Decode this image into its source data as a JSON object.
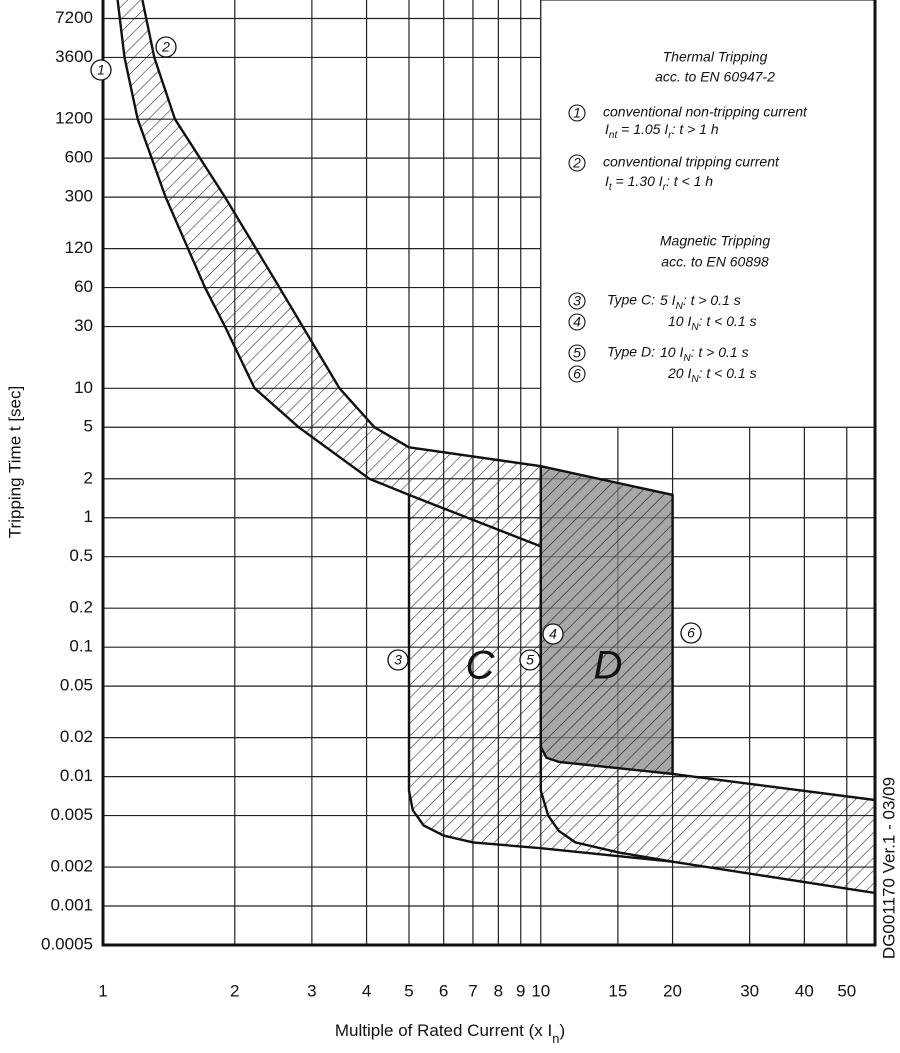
{
  "chart_data": {
    "type": "line",
    "y_label": "Tripping Time t [sec]",
    "x_label": [
      "Multiple of Rated Current (x I",
      "n",
      ")"
    ],
    "log_x": true,
    "log_y": true,
    "grid": true,
    "xlim": [
      1,
      58
    ],
    "ylim": [
      0.0005,
      10000
    ],
    "xticks": [
      1,
      2,
      3,
      4,
      5,
      6,
      7,
      8,
      9,
      10,
      15,
      20,
      30,
      40,
      50
    ],
    "yticks": [
      7200,
      3600,
      1200,
      600,
      300,
      120,
      60,
      30,
      10,
      5,
      2,
      1,
      0.5,
      0.2,
      0.1,
      0.05,
      0.02,
      0.01,
      0.005,
      0.002,
      0.001,
      0.0005
    ],
    "series": [
      {
        "color": "#111",
        "x": [
          1.08,
          1.12,
          1.2,
          1.39,
          1.71,
          1.9,
          2.22,
          2.8,
          4.06,
          5,
          10
        ],
        "values": [
          10000,
          3600,
          1200,
          300,
          60,
          30,
          10,
          5,
          2,
          1.5,
          0.6
        ]
      },
      {
        "color": "#111",
        "x": [
          1.23,
          1.31,
          1.46,
          1.9,
          2.53,
          3.47,
          4.17,
          5,
          10,
          20,
          20
        ],
        "values": [
          10000,
          3600,
          1200,
          300,
          60,
          10,
          5,
          3.5,
          2.5,
          1.5,
          0.0105
        ]
      },
      {
        "color": "#111",
        "x": [
          5,
          5,
          5.1,
          5.4,
          6,
          7,
          10,
          20,
          58
        ],
        "values": [
          1.5,
          0.0078,
          0.0055,
          0.0042,
          0.0035,
          0.0031,
          0.0028,
          0.0022,
          0.00126
        ]
      },
      {
        "color": "#111",
        "x": [
          10,
          10,
          10.3,
          11,
          20,
          58
        ],
        "values": [
          2.5,
          0.017,
          0.014,
          0.013,
          0.0105,
          0.0066
        ]
      },
      {
        "color": "#111",
        "x": [
          10,
          10,
          10.4,
          11,
          12,
          15,
          20
        ],
        "values": [
          0.6,
          0.0078,
          0.005,
          0.0038,
          0.0031,
          0.0026,
          0.0022
        ]
      }
    ],
    "markers": [
      "1",
      "2",
      "3",
      "4",
      "5",
      "6"
    ],
    "region_labels": [
      "C",
      "D"
    ],
    "note": "DG001170 Ver.1 - 03/09",
    "legend": {
      "thermal_title": "Thermal Tripping",
      "thermal_norm": "acc. to EN 60947-2",
      "items": [
        {
          "text": "conventional non-tripping current",
          "formula": [
            "I",
            "nt",
            " = 1.05 I",
            "r",
            ":  t > 1 h"
          ]
        },
        {
          "text": "conventional tripping current",
          "formula": [
            "I",
            "t",
            "  = 1.30 I",
            "r",
            ":  t < 1 h"
          ]
        }
      ],
      "magnetic_title": "Magnetic Tripping",
      "magnetic_norm": "acc. to EN 60898",
      "magnetic_items": [
        {
          "type": "Type C:",
          "formula": [
            "5 I",
            "N",
            ": t > 0.1 s"
          ]
        },
        {
          "formula": [
            "10 I",
            "N",
            ": t < 0.1 s"
          ]
        },
        {
          "type": "Type D:",
          "formula": [
            "10 I",
            "N",
            ": t > 0.1 s"
          ]
        },
        {
          "formula": [
            "20 I",
            "N",
            ": t < 0.1 s"
          ]
        }
      ]
    }
  }
}
